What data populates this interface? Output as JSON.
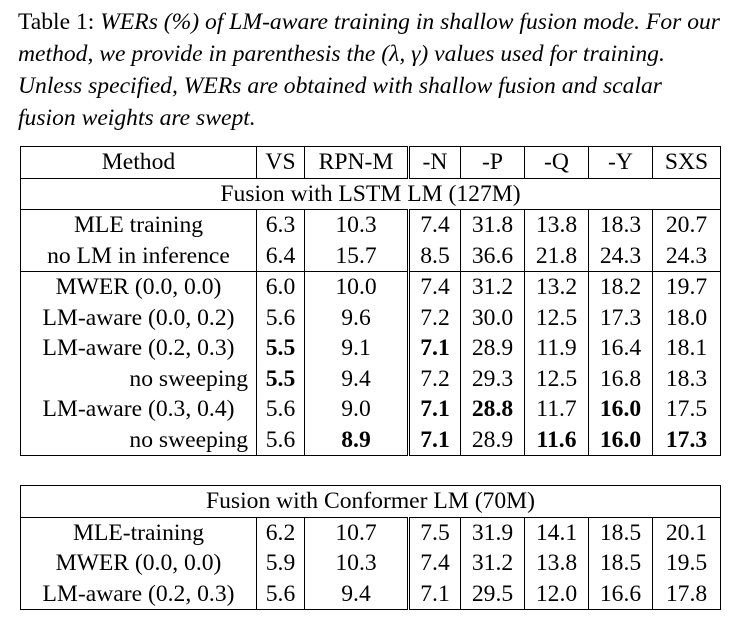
{
  "caption": {
    "lead": "Table 1:",
    "body": "WERs (%) of LM-aware training in shallow fusion mode. For our method, we provide in parenthesis the (λ, γ) values used for training. Unless specified, WERs are obtained with shallow fusion and scalar fusion weights are swept."
  },
  "headers": [
    "Method",
    "VS",
    "RPN-M",
    "-N",
    "-P",
    "-Q",
    "-Y",
    "SXS"
  ],
  "section1": {
    "title": "Fusion with LSTM LM (127M)",
    "group1": [
      {
        "method": "MLE training",
        "vals": [
          "6.3",
          "10.3",
          "7.4",
          "31.8",
          "13.8",
          "18.3",
          "20.7"
        ]
      },
      {
        "method": "no LM in inference",
        "vals": [
          "6.4",
          "15.7",
          "8.5",
          "36.6",
          "21.8",
          "24.3",
          "24.3"
        ]
      }
    ],
    "group2": [
      {
        "method": "MWER (0.0, 0.0)",
        "vals": [
          "6.0",
          "10.0",
          "7.4",
          "31.2",
          "13.2",
          "18.2",
          "19.7"
        ]
      },
      {
        "method": "LM-aware (0.0, 0.2)",
        "vals": [
          "5.6",
          "9.6",
          "7.2",
          "30.0",
          "12.5",
          "17.3",
          "18.0"
        ]
      },
      {
        "method": "LM-aware (0.2, 0.3)",
        "vals": [
          "5.5",
          "9.1",
          "7.1",
          "28.9",
          "11.9",
          "16.4",
          "18.1"
        ]
      },
      {
        "method": "no sweeping",
        "vals": [
          "5.5",
          "9.4",
          "7.2",
          "29.3",
          "12.5",
          "16.8",
          "18.3"
        ]
      },
      {
        "method": "LM-aware (0.3, 0.4)",
        "vals": [
          "5.6",
          "9.0",
          "7.1",
          "28.8",
          "11.7",
          "16.0",
          "17.5"
        ]
      },
      {
        "method": "no sweeping",
        "vals": [
          "5.6",
          "8.9",
          "7.1",
          "28.9",
          "11.6",
          "16.0",
          "17.3"
        ]
      }
    ]
  },
  "section2": {
    "title": "Fusion with Conformer LM (70M)",
    "rows": [
      {
        "method": "MLE-training",
        "vals": [
          "6.2",
          "10.7",
          "7.5",
          "31.9",
          "14.1",
          "18.5",
          "20.1"
        ]
      },
      {
        "method": "MWER (0.0, 0.0)",
        "vals": [
          "5.9",
          "10.3",
          "7.4",
          "31.2",
          "13.8",
          "18.5",
          "19.5"
        ]
      },
      {
        "method": "LM-aware (0.2, 0.3)",
        "vals": [
          "5.6",
          "9.4",
          "7.1",
          "29.5",
          "12.0",
          "16.6",
          "17.8"
        ]
      }
    ]
  }
}
